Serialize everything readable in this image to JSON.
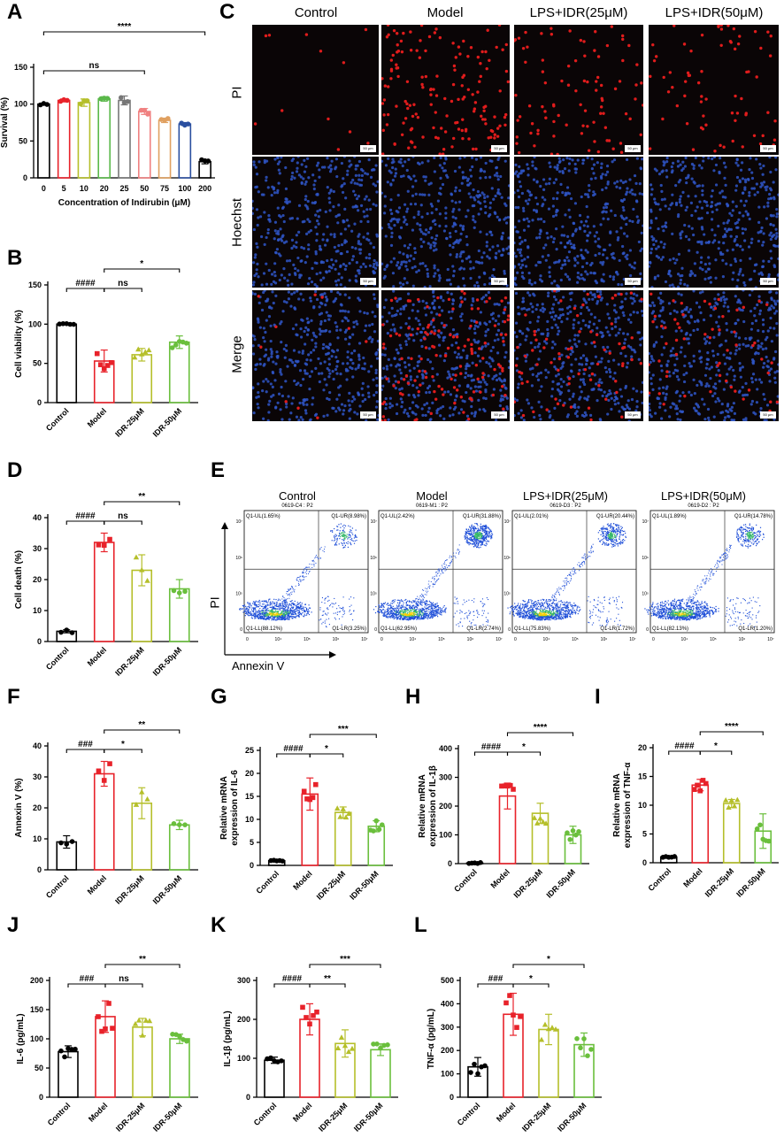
{
  "panel_labels": {
    "A": "A",
    "B": "B",
    "C": "C",
    "D": "D",
    "E": "E",
    "F": "F",
    "G": "G",
    "H": "H",
    "I": "I",
    "J": "J",
    "K": "K",
    "L": "L"
  },
  "colors": {
    "Control": "#000000",
    "Model": "#e8222a",
    "IDR-25": "#b5bf2a",
    "IDR-50": "#6abf3c",
    "c5": "#e8222a",
    "c10": "#b5bf2a",
    "c20": "#5ab84a",
    "c25": "#777777",
    "c50": "#f08080",
    "c75": "#e0a060",
    "c100": "#2a4fa0",
    "c200": "#000000"
  },
  "panel_c": {
    "columns": [
      "Control",
      "Model",
      "LPS+IDR(25μM)",
      "LPS+IDR(50μM)"
    ],
    "rows": [
      "PI",
      "Hoechst",
      "Merge"
    ],
    "scale_label": "50 μm"
  },
  "panel_e": {
    "titles": [
      "Control",
      "Model",
      "LPS+IDR(25μM)",
      "LPS+IDR(50μM)"
    ],
    "subtitles": [
      "0619-C4 : P2",
      "0619-M1 : P2",
      "0619-D3 : P2",
      "0619-D2 : P2"
    ],
    "quadrants": [
      {
        "ul": "Q1-UL(1.65%)",
        "ur": "Q1-UR(8.98%)",
        "ll": "Q1-LL(88.12%)",
        "lr": "Q1-LR(3.25%)"
      },
      {
        "ul": "Q1-UL(2.42%)",
        "ur": "Q1-UR(31.88%)",
        "ll": "Q1-LL(62.95%)",
        "lr": "Q1-LR(2.74%)"
      },
      {
        "ul": "Q1-UL(2.01%)",
        "ur": "Q1-UR(20.44%)",
        "ll": "Q1-LL(75.83%)",
        "lr": "Q1-LR(1.72%)"
      },
      {
        "ul": "Q1-UL(1.89%)",
        "ur": "Q1-UR(14.78%)",
        "ll": "Q1-LL(82.13%)",
        "lr": "Q1-LR(1.20%)"
      }
    ],
    "xlabel": "Annexin V",
    "ylabel": "PI",
    "x_ticks": [
      "0",
      "10⁴",
      "10⁵",
      "10⁶",
      "10⁷"
    ],
    "y_ticks": [
      "0",
      "10⁵",
      "10⁶",
      "10⁷"
    ]
  },
  "chart_data": [
    {
      "id": "A",
      "type": "bar",
      "categories": [
        "0",
        "5",
        "10",
        "20",
        "25",
        "50",
        "75",
        "100",
        "200"
      ],
      "values": [
        100,
        105,
        102,
        107,
        105,
        90,
        78,
        73,
        22
      ],
      "errors": [
        1,
        2,
        5,
        3,
        6,
        4,
        3,
        2,
        3
      ],
      "ylim": [
        0,
        150
      ],
      "yticks": [
        0,
        50,
        100,
        150
      ],
      "ylabel": "Survival (%)",
      "xlabel": "Concentration of Indirubin (μM)",
      "sig": [
        {
          "from": 0,
          "to": 8,
          "label": "****",
          "level": 0
        },
        {
          "from": 0,
          "to": 5,
          "label": "ns",
          "level": 1
        }
      ]
    },
    {
      "id": "B",
      "type": "bar",
      "categories": [
        "Control",
        "Model",
        "IDR-25μM",
        "IDR-50μM"
      ],
      "values": [
        100,
        53,
        61,
        77
      ],
      "errors": [
        0,
        14,
        8,
        8
      ],
      "ylim": [
        0,
        150
      ],
      "yticks": [
        0,
        50,
        100,
        150
      ],
      "ylabel": "Cell viability (%)",
      "xlabel": "",
      "sig": [
        {
          "from": 0,
          "to": 1,
          "label": "####",
          "level": 1
        },
        {
          "from": 1,
          "to": 2,
          "label": "ns",
          "level": 1
        },
        {
          "from": 1,
          "to": 3,
          "label": "*",
          "level": 0
        }
      ]
    },
    {
      "id": "D",
      "type": "bar",
      "categories": [
        "Control",
        "Model",
        "IDR-25μM",
        "IDR-50μM"
      ],
      "values": [
        3.3,
        32,
        23,
        17
      ],
      "errors": [
        0.5,
        3,
        5,
        3
      ],
      "ylim": [
        0,
        40
      ],
      "yticks": [
        0,
        10,
        20,
        30,
        40
      ],
      "ylabel": "Cell death (%)",
      "xlabel": "",
      "sig": [
        {
          "from": 0,
          "to": 1,
          "label": "####",
          "level": 1
        },
        {
          "from": 1,
          "to": 2,
          "label": "ns",
          "level": 1
        },
        {
          "from": 1,
          "to": 3,
          "label": "**",
          "level": 0
        }
      ]
    },
    {
      "id": "F",
      "type": "bar",
      "categories": [
        "Control",
        "Model",
        "IDR-25μM",
        "IDR-50μM"
      ],
      "values": [
        9,
        31,
        21.5,
        14.5
      ],
      "errors": [
        2,
        4,
        5,
        1.5
      ],
      "ylim": [
        0,
        40
      ],
      "yticks": [
        0,
        10,
        20,
        30,
        40
      ],
      "ylabel": "Annexin V (%)",
      "xlabel": "",
      "sig": [
        {
          "from": 0,
          "to": 1,
          "label": "###",
          "level": 1
        },
        {
          "from": 1,
          "to": 2,
          "label": "*",
          "level": 1
        },
        {
          "from": 1,
          "to": 3,
          "label": "**",
          "level": 0
        }
      ]
    },
    {
      "id": "G",
      "type": "bar",
      "categories": [
        "Control",
        "Model",
        "IDR-25μM",
        "IDR-50μM"
      ],
      "values": [
        1,
        15.5,
        11.5,
        8.5
      ],
      "errors": [
        0.1,
        3.5,
        1.2,
        1.2
      ],
      "ylim": [
        0,
        25
      ],
      "yticks": [
        0,
        5,
        10,
        15,
        20,
        25
      ],
      "ylabel": "Relative mRNA expression of IL-6",
      "xlabel": "",
      "sig": [
        {
          "from": 0,
          "to": 1,
          "label": "####",
          "level": 1
        },
        {
          "from": 1,
          "to": 2,
          "label": "*",
          "level": 1
        },
        {
          "from": 1,
          "to": 3,
          "label": "***",
          "level": 0
        }
      ]
    },
    {
      "id": "H",
      "type": "bar",
      "categories": [
        "Control",
        "Model",
        "IDR-25μM",
        "IDR-50μM"
      ],
      "values": [
        2,
        235,
        175,
        100
      ],
      "errors": [
        1,
        45,
        35,
        30
      ],
      "ylim": [
        0,
        400
      ],
      "yticks": [
        0,
        100,
        200,
        300,
        400
      ],
      "ylabel": "Relative mRNA expression of IL-1β",
      "xlabel": "",
      "sig": [
        {
          "from": 0,
          "to": 1,
          "label": "####",
          "level": 1
        },
        {
          "from": 1,
          "to": 2,
          "label": "*",
          "level": 1
        },
        {
          "from": 1,
          "to": 3,
          "label": "****",
          "level": 0
        }
      ]
    },
    {
      "id": "I",
      "type": "bar",
      "categories": [
        "Control",
        "Model",
        "IDR-25μM",
        "IDR-50μM"
      ],
      "values": [
        1,
        13.5,
        10.3,
        5.5
      ],
      "errors": [
        0.1,
        1,
        0.7,
        3
      ],
      "ylim": [
        0,
        20
      ],
      "yticks": [
        0,
        5,
        10,
        15,
        20
      ],
      "ylabel": "Relative mRNA expression of TNF-α",
      "xlabel": "",
      "sig": [
        {
          "from": 0,
          "to": 1,
          "label": "####",
          "level": 1
        },
        {
          "from": 1,
          "to": 2,
          "label": "*",
          "level": 1
        },
        {
          "from": 1,
          "to": 3,
          "label": "****",
          "level": 0
        }
      ]
    },
    {
      "id": "J",
      "type": "bar",
      "categories": [
        "Control",
        "Model",
        "IDR-25μM",
        "IDR-50μM"
      ],
      "values": [
        78,
        138,
        120,
        100
      ],
      "errors": [
        10,
        27,
        15,
        8
      ],
      "ylim": [
        0,
        200
      ],
      "yticks": [
        0,
        50,
        100,
        150,
        200
      ],
      "ylabel": "IL-6 (pg/mL)",
      "xlabel": "",
      "sig": [
        {
          "from": 0,
          "to": 1,
          "label": "###",
          "level": 1
        },
        {
          "from": 1,
          "to": 2,
          "label": "ns",
          "level": 1
        },
        {
          "from": 1,
          "to": 3,
          "label": "**",
          "level": 0
        }
      ]
    },
    {
      "id": "K",
      "type": "bar",
      "categories": [
        "Control",
        "Model",
        "IDR-25μM",
        "IDR-50μM"
      ],
      "values": [
        95,
        200,
        138,
        122
      ],
      "errors": [
        8,
        40,
        35,
        15
      ],
      "ylim": [
        0,
        300
      ],
      "yticks": [
        0,
        100,
        200,
        300
      ],
      "ylabel": "IL-1β (pg/mL)",
      "xlabel": "",
      "sig": [
        {
          "from": 0,
          "to": 1,
          "label": "####",
          "level": 1
        },
        {
          "from": 1,
          "to": 2,
          "label": "**",
          "level": 1
        },
        {
          "from": 1,
          "to": 3,
          "label": "***",
          "level": 0
        }
      ]
    },
    {
      "id": "L",
      "type": "bar",
      "categories": [
        "Control",
        "Model",
        "IDR-25μM",
        "IDR-50μM"
      ],
      "values": [
        130,
        355,
        290,
        225
      ],
      "errors": [
        40,
        90,
        65,
        50
      ],
      "ylim": [
        0,
        500
      ],
      "yticks": [
        0,
        100,
        200,
        300,
        400,
        500
      ],
      "ylabel": "TNF-α (pg/mL)",
      "xlabel": "",
      "sig": [
        {
          "from": 0,
          "to": 1,
          "label": "###",
          "level": 1
        },
        {
          "from": 1,
          "to": 2,
          "label": "*",
          "level": 1
        },
        {
          "from": 1,
          "to": 3,
          "label": "*",
          "level": 0
        }
      ]
    }
  ]
}
